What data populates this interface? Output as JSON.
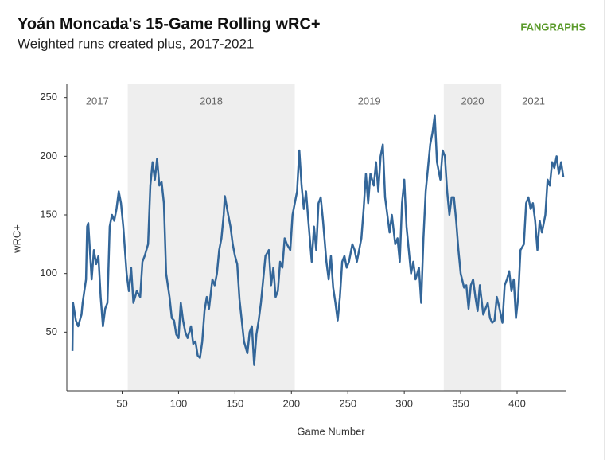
{
  "chart_data": {
    "type": "line",
    "title": "Yoán Moncada's 15-Game Rolling wRC+",
    "subtitle": "Weighted runs created plus, 2017-2021",
    "logo": "FANGRAPHS",
    "x_label": "Game Number",
    "y_label": "wRC+",
    "xlim": [
      1,
      443
    ],
    "ylim": [
      0,
      262
    ],
    "xticks": [
      50,
      100,
      150,
      200,
      250,
      300,
      350,
      400
    ],
    "yticks": [
      50,
      100,
      150,
      200,
      250
    ],
    "seasons": [
      {
        "label": "2017",
        "start": 1,
        "end": 55,
        "shaded": false
      },
      {
        "label": "2018",
        "start": 55,
        "end": 203,
        "shaded": true
      },
      {
        "label": "2019",
        "start": 203,
        "end": 335,
        "shaded": false
      },
      {
        "label": "2020",
        "start": 335,
        "end": 386,
        "shaded": true
      },
      {
        "label": "2021",
        "start": 386,
        "end": 443,
        "shaded": false
      }
    ],
    "shade_color": "#eeeeee",
    "x": [
      6,
      6.5,
      9,
      11,
      14,
      15,
      18,
      19,
      20,
      23,
      25,
      27,
      29,
      31,
      33,
      35,
      37,
      39,
      41,
      43,
      45,
      47,
      49,
      51,
      54,
      56,
      58,
      60,
      63,
      66,
      68,
      70,
      73,
      75,
      77,
      79,
      81,
      83,
      85,
      87,
      89,
      92,
      94,
      96,
      98,
      100,
      102,
      104,
      106,
      108,
      111,
      113,
      115,
      117,
      119,
      121,
      123,
      125,
      127,
      130,
      132,
      134,
      136,
      138,
      140,
      141,
      144,
      146,
      148,
      150,
      152,
      154,
      156,
      158,
      161,
      163,
      165,
      167,
      169,
      171,
      173,
      175,
      177,
      180,
      182,
      184,
      186,
      188,
      190,
      192,
      194,
      196,
      199,
      201,
      203,
      205,
      207,
      209,
      211,
      213,
      215,
      218,
      220,
      222,
      224,
      226,
      228,
      231,
      233,
      235,
      237,
      239,
      241,
      243,
      245,
      247,
      249,
      251,
      254,
      256,
      258,
      260,
      262,
      264,
      266,
      268,
      270,
      273,
      275,
      277,
      279,
      281,
      283,
      285,
      287,
      289,
      292,
      294,
      296,
      298,
      300,
      302,
      304,
      306,
      308,
      310,
      313,
      315,
      317,
      319,
      321,
      323,
      325,
      327,
      329,
      332,
      334,
      336,
      338,
      340,
      342,
      344,
      346,
      348,
      350,
      353,
      355,
      357,
      359,
      361,
      363,
      365,
      367,
      370,
      372,
      374,
      376,
      378,
      380,
      382,
      384,
      387,
      389,
      391,
      393,
      395,
      397,
      399,
      401,
      403,
      406,
      408,
      410,
      412,
      414,
      416,
      418,
      420,
      422,
      425,
      427,
      429,
      431,
      433,
      435,
      437,
      439,
      441
    ],
    "series": [
      {
        "name": "wRC+",
        "color": "#336699",
        "values": [
          34,
          75,
          60,
          55,
          65,
          75,
          95,
          140,
          143,
          95,
          120,
          108,
          115,
          80,
          55,
          70,
          75,
          140,
          150,
          145,
          155,
          170,
          160,
          140,
          100,
          85,
          105,
          75,
          85,
          80,
          110,
          115,
          125,
          175,
          195,
          180,
          198,
          175,
          178,
          160,
          100,
          80,
          62,
          60,
          48,
          45,
          75,
          60,
          50,
          45,
          55,
          40,
          42,
          30,
          28,
          42,
          68,
          80,
          70,
          95,
          90,
          100,
          120,
          130,
          150,
          166,
          150,
          140,
          125,
          115,
          108,
          78,
          60,
          42,
          32,
          50,
          55,
          22,
          48,
          60,
          75,
          95,
          115,
          120,
          90,
          105,
          80,
          85,
          110,
          105,
          130,
          125,
          120,
          150,
          160,
          170,
          205,
          175,
          155,
          170,
          145,
          110,
          140,
          120,
          160,
          165,
          145,
          110,
          95,
          115,
          88,
          75,
          60,
          80,
          110,
          115,
          105,
          110,
          125,
          120,
          110,
          120,
          130,
          155,
          185,
          160,
          185,
          175,
          195,
          170,
          200,
          210,
          165,
          150,
          135,
          150,
          125,
          130,
          110,
          160,
          180,
          140,
          120,
          100,
          110,
          95,
          105,
          75,
          130,
          170,
          190,
          210,
          220,
          235,
          195,
          180,
          205,
          200,
          170,
          150,
          165,
          165,
          145,
          120,
          100,
          88,
          90,
          70,
          90,
          95,
          80,
          68,
          90,
          65,
          70,
          75,
          62,
          58,
          60,
          80,
          72,
          58,
          90,
          95,
          102,
          85,
          95,
          62,
          80,
          120,
          125,
          160,
          165,
          155,
          160,
          145,
          120,
          145,
          135,
          150,
          180,
          175,
          195,
          190,
          200,
          185,
          195,
          182
        ]
      }
    ]
  }
}
